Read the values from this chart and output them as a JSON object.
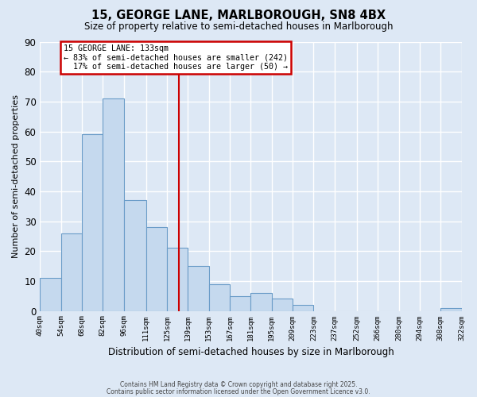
{
  "title": "15, GEORGE LANE, MARLBOROUGH, SN8 4BX",
  "subtitle": "Size of property relative to semi-detached houses in Marlborough",
  "xlabel": "Distribution of semi-detached houses by size in Marlborough",
  "ylabel": "Number of semi-detached properties",
  "bar_color": "#c5d9ee",
  "bar_edge_color": "#6a9cc8",
  "background_color": "#dde8f5",
  "grid_color": "#ffffff",
  "bins": [
    40,
    54,
    68,
    82,
    96,
    111,
    125,
    139,
    153,
    167,
    181,
    195,
    209,
    223,
    237,
    252,
    266,
    280,
    294,
    308,
    322
  ],
  "bin_labels": [
    "40sqm",
    "54sqm",
    "68sqm",
    "82sqm",
    "96sqm",
    "111sqm",
    "125sqm",
    "139sqm",
    "153sqm",
    "167sqm",
    "181sqm",
    "195sqm",
    "209sqm",
    "223sqm",
    "237sqm",
    "252sqm",
    "266sqm",
    "280sqm",
    "294sqm",
    "308sqm",
    "322sqm"
  ],
  "counts": [
    11,
    26,
    59,
    71,
    37,
    28,
    21,
    15,
    9,
    5,
    6,
    4,
    2,
    0,
    0,
    0,
    0,
    0,
    0,
    1
  ],
  "ylim": [
    0,
    90
  ],
  "yticks": [
    0,
    10,
    20,
    30,
    40,
    50,
    60,
    70,
    80,
    90
  ],
  "property_size": 133,
  "property_label": "15 GEORGE LANE: 133sqm",
  "pct_smaller": 83,
  "pct_smaller_count": 242,
  "pct_larger": 17,
  "pct_larger_count": 50,
  "annotation_box_color": "#ffffff",
  "annotation_box_edge": "#cc0000",
  "vline_color": "#cc0000",
  "footer1": "Contains HM Land Registry data © Crown copyright and database right 2025.",
  "footer2": "Contains public sector information licensed under the Open Government Licence v3.0."
}
